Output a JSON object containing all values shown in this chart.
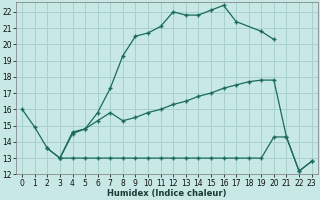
{
  "xlabel": "Humidex (Indice chaleur)",
  "bg_color": "#c8e8e5",
  "grid_color": "#a8d0cc",
  "line_color": "#1a6b5a",
  "xlim": [
    -0.5,
    23.5
  ],
  "ylim": [
    12,
    22.6
  ],
  "xticks": [
    0,
    1,
    2,
    3,
    4,
    5,
    6,
    7,
    8,
    9,
    10,
    11,
    12,
    13,
    14,
    15,
    16,
    17,
    18,
    19,
    20,
    21,
    22,
    23
  ],
  "yticks": [
    12,
    13,
    14,
    15,
    16,
    17,
    18,
    19,
    20,
    21,
    22
  ],
  "line1_x": [
    0,
    1,
    2,
    3,
    4,
    5,
    6,
    7,
    8,
    9,
    10,
    11,
    12,
    13,
    14,
    15,
    16,
    17,
    19,
    20
  ],
  "line1_y": [
    16.0,
    14.9,
    13.6,
    13.0,
    14.6,
    14.8,
    15.8,
    17.3,
    19.3,
    20.5,
    20.7,
    21.1,
    22.0,
    21.8,
    21.8,
    22.1,
    22.4,
    21.4,
    20.8,
    20.3
  ],
  "line2_x": [
    2,
    3,
    4,
    5,
    6,
    7,
    8,
    9,
    10,
    11,
    12,
    13,
    14,
    15,
    16,
    17,
    18,
    19,
    20,
    21,
    22,
    23
  ],
  "line2_y": [
    13.6,
    13.0,
    14.5,
    14.8,
    15.3,
    15.8,
    15.3,
    15.5,
    15.8,
    16.0,
    16.3,
    16.5,
    16.8,
    17.0,
    17.3,
    17.5,
    17.7,
    17.8,
    17.8,
    14.3,
    12.2,
    12.8
  ],
  "line3_x": [
    3,
    4,
    5,
    6,
    7,
    8,
    9,
    10,
    11,
    12,
    13,
    14,
    15,
    16,
    17,
    18,
    19,
    20,
    21,
    22,
    23
  ],
  "line3_y": [
    13.0,
    13.0,
    13.0,
    13.0,
    13.0,
    13.0,
    13.0,
    13.0,
    13.0,
    13.0,
    13.0,
    13.0,
    13.0,
    13.0,
    13.0,
    13.0,
    13.0,
    14.3,
    14.3,
    12.2,
    12.8
  ]
}
